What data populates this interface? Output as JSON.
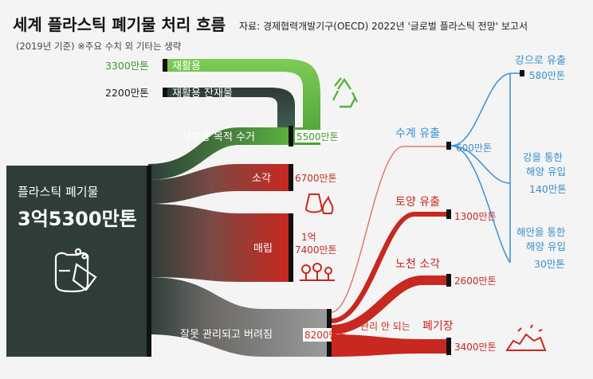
{
  "header": {
    "title": "세계 플라스틱 폐기물 처리 흐름",
    "source": "자료: 경제협력개발기구(OECD) 2022년 '글로벌 플라스틱 전망' 보고서",
    "note": "(2019년 기준) ※주요 수치 외 기타는 생략"
  },
  "colors": {
    "green": "#5bb040",
    "dark_green": "#2d4a3f",
    "red": "#c8281f",
    "gray": "#6f6f6f",
    "blue": "#3a8fd0",
    "source_box": "#2e3d38"
  },
  "source": {
    "label": "플라스틱 폐기물",
    "value": "3억5300만톤",
    "icon": "trash-bag-icon"
  },
  "recycling": {
    "recycled_value": "3300만톤",
    "recycled_label": "재활용",
    "residue_value": "2200만톤",
    "residue_label": "재활용 잔재물",
    "collected_label": "재활용 목적 수거",
    "collected_value": "5500만톤",
    "icon": "recycle-icon"
  },
  "incineration": {
    "label": "소각",
    "value": "6700만톤",
    "icon": "fire-bag-icon"
  },
  "landfill": {
    "label": "매립",
    "value_line1": "1억",
    "value_line2": "7400만톤",
    "icon": "landfill-icon"
  },
  "mismanaged": {
    "label": "잘못 관리되고 버려짐",
    "value": "8200만톤",
    "branches": {
      "water": {
        "label": "수계 유출",
        "value": "600만톤"
      },
      "soil": {
        "label": "토양 유출",
        "value": "1300만톤"
      },
      "open_burning": {
        "label": "노천 소각",
        "value": "2600만톤"
      },
      "unmanaged": {
        "prefix": "관리 안 되는",
        "label": "폐기장",
        "value": "3400만톤",
        "icon": "waste-pile-icon"
      }
    }
  },
  "water_branches": {
    "river": {
      "label": "강으로 유출",
      "value": "580만톤"
    },
    "river_to_ocean": {
      "line1": "강을 통한",
      "line2": "해양 유입",
      "value": "140만톤"
    },
    "coast_to_ocean": {
      "line1": "해안을 통한",
      "line2": "해양 유입",
      "value": "30만톤"
    }
  }
}
